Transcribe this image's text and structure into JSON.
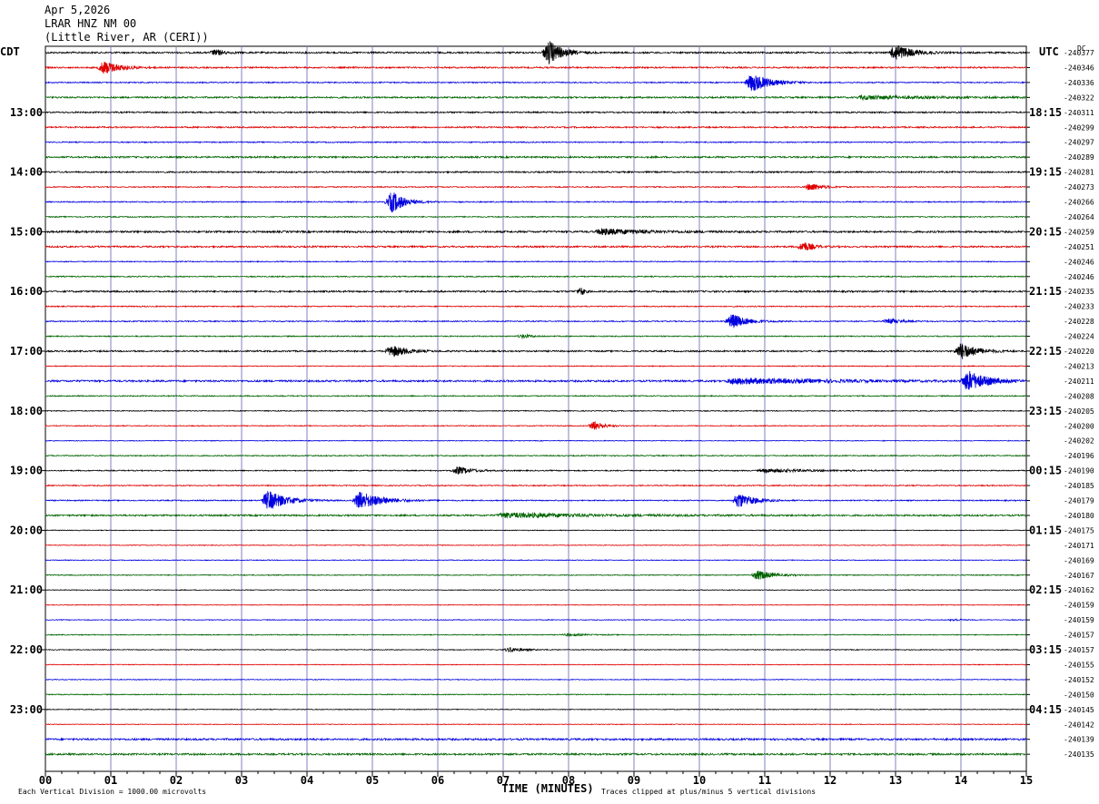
{
  "header": {
    "date": "Apr 5,2026",
    "station": "LRAR HNZ NM 00",
    "location": "(Little River, AR (CERI))"
  },
  "footer": {
    "left_note": "Each Vertical Division = 1000.00 microvolts",
    "right_note": "Traces clipped at plus/minus 5 vertical divisions"
  },
  "chart_data": {
    "type": "line",
    "title": "",
    "xlabel": "TIME (MINUTES)",
    "ylabel": "",
    "xlim": [
      0,
      15
    ],
    "x_ticks": [
      "00",
      "01",
      "02",
      "03",
      "04",
      "05",
      "06",
      "07",
      "08",
      "09",
      "10",
      "11",
      "12",
      "13",
      "14",
      "15"
    ],
    "left_axis_label": "CDT",
    "right_axis_label": "UTC",
    "dc_label": "DC",
    "rows_per_hour": 4,
    "row_minutes": 15,
    "trace_colors": [
      "#000000",
      "#e00000",
      "#0000e0",
      "#006400"
    ],
    "grid": true,
    "left_time_labels": [
      {
        "row": 4,
        "label": "13:00"
      },
      {
        "row": 8,
        "label": "14:00"
      },
      {
        "row": 12,
        "label": "15:00"
      },
      {
        "row": 16,
        "label": "16:00"
      },
      {
        "row": 20,
        "label": "17:00"
      },
      {
        "row": 24,
        "label": "18:00"
      },
      {
        "row": 28,
        "label": "19:00"
      },
      {
        "row": 32,
        "label": "20:00"
      },
      {
        "row": 36,
        "label": "21:00"
      },
      {
        "row": 40,
        "label": "22:00"
      },
      {
        "row": 44,
        "label": "23:00"
      }
    ],
    "right_time_labels": [
      {
        "row": 4,
        "label": "18:15"
      },
      {
        "row": 8,
        "label": "19:15"
      },
      {
        "row": 12,
        "label": "20:15"
      },
      {
        "row": 16,
        "label": "21:15"
      },
      {
        "row": 20,
        "label": "22:15"
      },
      {
        "row": 24,
        "label": "23:15"
      },
      {
        "row": 28,
        "label": "00:15"
      },
      {
        "row": 32,
        "label": "01:15"
      },
      {
        "row": 36,
        "label": "02:15"
      },
      {
        "row": 40,
        "label": "03:15"
      },
      {
        "row": 44,
        "label": "04:15"
      }
    ],
    "dc_values": [
      "-240377",
      "-240346",
      "-240336",
      "-240322",
      "-240311",
      "-240299",
      "-240297",
      "-240289",
      "-240281",
      "-240273",
      "-240266",
      "-240264",
      "-240259",
      "-240251",
      "-240246",
      "-240246",
      "-240235",
      "-240233",
      "-240228",
      "-240224",
      "-240220",
      "-240213",
      "-240211",
      "-240208",
      "-240205",
      "-240200",
      "-240202",
      "-240196",
      "-240190",
      "-240185",
      "-240179",
      "-240180",
      "-240175",
      "-240171",
      "-240169",
      "-240167",
      "-240162",
      "-240159",
      "-240159",
      "-240157",
      "-240157",
      "-240155",
      "-240152",
      "-240150",
      "-240145",
      "-240142",
      "-240139",
      "-240135"
    ],
    "trace_noise": [
      0.9,
      0.8,
      0.6,
      0.9,
      0.8,
      0.8,
      0.6,
      0.9,
      0.8,
      0.6,
      0.6,
      0.6,
      1.0,
      0.9,
      0.5,
      0.6,
      0.9,
      0.6,
      0.6,
      0.6,
      0.8,
      0.5,
      1.0,
      0.6,
      0.5,
      0.5,
      0.4,
      0.6,
      0.6,
      0.6,
      0.6,
      0.9,
      0.4,
      0.4,
      0.4,
      0.5,
      0.4,
      0.4,
      0.4,
      0.5,
      0.4,
      0.4,
      0.4,
      0.5,
      0.4,
      0.4,
      1.0,
      1.0
    ],
    "events": [
      {
        "row": 0,
        "minute": 2.6,
        "amplitude": 3,
        "duration": 0.3
      },
      {
        "row": 0,
        "minute": 7.7,
        "amplitude": 13,
        "duration": 0.4
      },
      {
        "row": 0,
        "minute": 13.0,
        "amplitude": 9,
        "duration": 0.5
      },
      {
        "row": 1,
        "minute": 0.9,
        "amplitude": 7,
        "duration": 0.5
      },
      {
        "row": 2,
        "minute": 10.8,
        "amplitude": 10,
        "duration": 0.6
      },
      {
        "row": 3,
        "minute": 12.5,
        "amplitude": 2,
        "duration": 2.0
      },
      {
        "row": 9,
        "minute": 11.7,
        "amplitude": 4,
        "duration": 0.4
      },
      {
        "row": 10,
        "minute": 5.3,
        "amplitude": 12,
        "duration": 0.4
      },
      {
        "row": 12,
        "minute": 8.5,
        "amplitude": 3,
        "duration": 1.5
      },
      {
        "row": 13,
        "minute": 11.6,
        "amplitude": 5,
        "duration": 0.3
      },
      {
        "row": 16,
        "minute": 8.2,
        "amplitude": 4,
        "duration": 0.1
      },
      {
        "row": 18,
        "minute": 10.5,
        "amplitude": 8,
        "duration": 0.5
      },
      {
        "row": 18,
        "minute": 12.9,
        "amplitude": 3,
        "duration": 0.4
      },
      {
        "row": 19,
        "minute": 7.3,
        "amplitude": 2,
        "duration": 0.3
      },
      {
        "row": 20,
        "minute": 5.3,
        "amplitude": 6,
        "duration": 0.5
      },
      {
        "row": 20,
        "minute": 14.0,
        "amplitude": 9,
        "duration": 0.5
      },
      {
        "row": 22,
        "minute": 10.5,
        "amplitude": 3,
        "duration": 3.0
      },
      {
        "row": 22,
        "minute": 14.1,
        "amplitude": 11,
        "duration": 0.6
      },
      {
        "row": 25,
        "minute": 8.4,
        "amplitude": 5,
        "duration": 0.3
      },
      {
        "row": 28,
        "minute": 6.3,
        "amplitude": 4,
        "duration": 0.5
      },
      {
        "row": 28,
        "minute": 11.0,
        "amplitude": 2,
        "duration": 1.5
      },
      {
        "row": 30,
        "minute": 3.4,
        "amplitude": 11,
        "duration": 0.6
      },
      {
        "row": 30,
        "minute": 4.8,
        "amplitude": 10,
        "duration": 0.7
      },
      {
        "row": 30,
        "minute": 10.6,
        "amplitude": 8,
        "duration": 0.5
      },
      {
        "row": 31,
        "minute": 7.0,
        "amplitude": 2.5,
        "duration": 3.0
      },
      {
        "row": 35,
        "minute": 10.9,
        "amplitude": 5,
        "duration": 0.5
      },
      {
        "row": 38,
        "minute": 13.9,
        "amplitude": 1.5,
        "duration": 0.2
      },
      {
        "row": 39,
        "minute": 8.0,
        "amplitude": 1.5,
        "duration": 0.5
      },
      {
        "row": 40,
        "minute": 7.1,
        "amplitude": 2.5,
        "duration": 0.5
      }
    ]
  }
}
